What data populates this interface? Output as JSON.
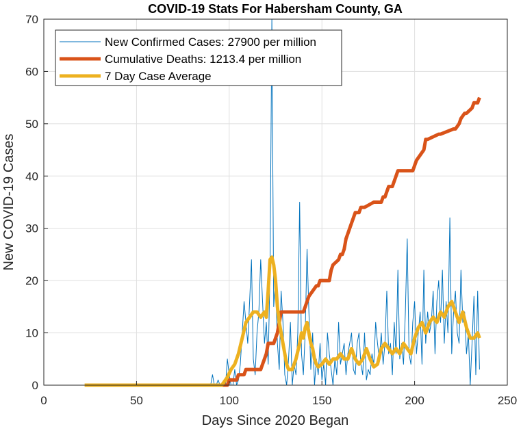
{
  "chart_data": {
    "type": "line",
    "title": "COVID-19 Stats For Habersham County, GA",
    "xlabel": "Days Since 2020 Began",
    "ylabel": "New COVID-19 Cases",
    "xlim": [
      0,
      250
    ],
    "ylim": [
      0,
      70
    ],
    "xticks": [
      0,
      50,
      100,
      150,
      200,
      250
    ],
    "yticks": [
      0,
      10,
      20,
      30,
      40,
      50,
      60,
      70
    ],
    "grid": true,
    "legend_position": "top-left",
    "series": [
      {
        "name": "New Confirmed Cases: 27900 per million",
        "color": "#0072BD",
        "style": "thin",
        "x": [
          22,
          90,
          91,
          92,
          93,
          94,
          95,
          96,
          97,
          98,
          99,
          100,
          101,
          102,
          103,
          104,
          105,
          106,
          107,
          108,
          109,
          110,
          111,
          112,
          113,
          114,
          115,
          116,
          117,
          118,
          119,
          120,
          121,
          122,
          123,
          124,
          125,
          126,
          127,
          128,
          129,
          130,
          131,
          132,
          133,
          134,
          135,
          136,
          137,
          138,
          139,
          140,
          141,
          142,
          143,
          144,
          145,
          146,
          147,
          148,
          149,
          150,
          151,
          152,
          153,
          154,
          155,
          156,
          157,
          158,
          159,
          160,
          161,
          162,
          163,
          164,
          165,
          166,
          167,
          168,
          169,
          170,
          171,
          172,
          173,
          174,
          175,
          176,
          177,
          178,
          179,
          180,
          181,
          182,
          183,
          184,
          185,
          186,
          187,
          188,
          189,
          190,
          191,
          192,
          193,
          194,
          195,
          196,
          197,
          198,
          199,
          200,
          201,
          202,
          203,
          204,
          205,
          206,
          207,
          208,
          209,
          210,
          211,
          212,
          213,
          214,
          215,
          216,
          217,
          218,
          219,
          220,
          221,
          222,
          223,
          224,
          225,
          226,
          227,
          228,
          229,
          230,
          231,
          232,
          233,
          234,
          235
        ],
        "values": [
          0,
          0,
          2,
          0,
          0,
          1,
          0,
          0,
          0,
          0,
          5,
          2,
          0,
          0,
          3,
          0,
          1,
          4,
          10,
          16,
          12,
          8,
          16,
          24,
          5,
          2,
          10,
          14,
          24,
          16,
          8,
          12,
          4,
          22,
          70,
          15,
          20,
          8,
          3,
          18,
          12,
          2,
          0,
          5,
          12,
          0,
          4,
          2,
          10,
          35,
          6,
          2,
          10,
          26,
          14,
          3,
          10,
          0,
          5,
          2,
          8,
          1,
          4,
          0,
          10,
          6,
          3,
          0,
          5,
          2,
          12,
          4,
          6,
          8,
          2,
          6,
          8,
          10,
          3,
          2,
          8,
          10,
          4,
          2,
          10,
          1,
          3,
          2,
          6,
          4,
          12,
          8,
          5,
          10,
          4,
          8,
          18,
          6,
          8,
          2,
          12,
          6,
          22,
          5,
          8,
          4,
          14,
          28,
          6,
          4,
          12,
          16,
          6,
          10,
          14,
          4,
          22,
          8,
          14,
          10,
          12,
          18,
          6,
          16,
          20,
          12,
          22,
          8,
          16,
          10,
          32,
          6,
          14,
          18,
          10,
          8,
          22,
          12,
          14,
          6,
          10,
          0,
          8,
          17,
          2,
          18,
          3
        ]
      },
      {
        "name": "Cumulative Deaths: 1213.4 per million",
        "color": "#D95319",
        "style": "thick",
        "x": [
          95,
          99,
          100,
          104,
          105,
          108,
          109,
          110,
          113,
          114,
          117,
          118,
          119,
          120,
          121,
          124,
          125,
          126,
          127,
          128,
          140,
          141,
          142,
          143,
          147,
          148,
          149,
          154,
          155,
          156,
          159,
          160,
          161,
          162,
          163,
          164,
          165,
          166,
          167,
          168,
          169,
          170,
          171,
          172,
          173,
          178,
          179,
          182,
          183,
          184,
          185,
          186,
          188,
          189,
          190,
          191,
          198,
          199,
          200,
          201,
          205,
          206,
          207,
          213,
          214,
          221,
          222,
          224,
          225,
          227,
          228,
          231,
          232,
          233,
          234,
          235
        ],
        "values": [
          0,
          0,
          1,
          1,
          2,
          2,
          3,
          3,
          3,
          3,
          3,
          4,
          5,
          6,
          8,
          8,
          9,
          10,
          12,
          14,
          14,
          15,
          16,
          17,
          19,
          19,
          20,
          20,
          22,
          23,
          24,
          25,
          25,
          26,
          28,
          29,
          30,
          31,
          32,
          33,
          33,
          33,
          34,
          34,
          34,
          35,
          35,
          35,
          36,
          36,
          37,
          38,
          38,
          39,
          40,
          41,
          41,
          41,
          42,
          43,
          45,
          47,
          47,
          48,
          48,
          49,
          49,
          50,
          51,
          52,
          52,
          53,
          54,
          54,
          54,
          55
        ]
      },
      {
        "name": "7 Day Case Average",
        "color": "#EDB120",
        "style": "thick",
        "x": [
          22,
          96,
          99,
          101,
          103,
          105,
          107,
          109,
          111,
          113,
          115,
          117,
          119,
          120,
          121,
          122,
          123,
          124,
          125,
          126,
          127,
          128,
          129,
          130,
          131,
          132,
          134,
          136,
          138,
          139,
          140,
          141,
          142,
          143,
          144,
          145,
          146,
          147,
          148,
          150,
          152,
          154,
          156,
          158,
          160,
          162,
          164,
          166,
          168,
          170,
          172,
          174,
          176,
          178,
          180,
          182,
          184,
          186,
          188,
          190,
          192,
          194,
          196,
          198,
          200,
          202,
          204,
          206,
          208,
          210,
          212,
          214,
          216,
          218,
          220,
          222,
          224,
          226,
          228,
          230,
          232,
          234,
          235
        ],
        "values": [
          0,
          0,
          1.5,
          3,
          4,
          6,
          9,
          12,
          13,
          14,
          14,
          13,
          14,
          13,
          18,
          24,
          24.5,
          23,
          20,
          15,
          12,
          10,
          8,
          6,
          4,
          3,
          3,
          5,
          8,
          10,
          9,
          11,
          12,
          10,
          8,
          7,
          5,
          4,
          3.5,
          4,
          5,
          4,
          5,
          5,
          6,
          5,
          5,
          7,
          5,
          4,
          5,
          7,
          5,
          3.5,
          4,
          7,
          8,
          7,
          6,
          7,
          6,
          8,
          7,
          6,
          9,
          11,
          12,
          10,
          12,
          13,
          12,
          14,
          13,
          15,
          16,
          14,
          12,
          14,
          11,
          9,
          9,
          10,
          9
        ]
      }
    ]
  }
}
